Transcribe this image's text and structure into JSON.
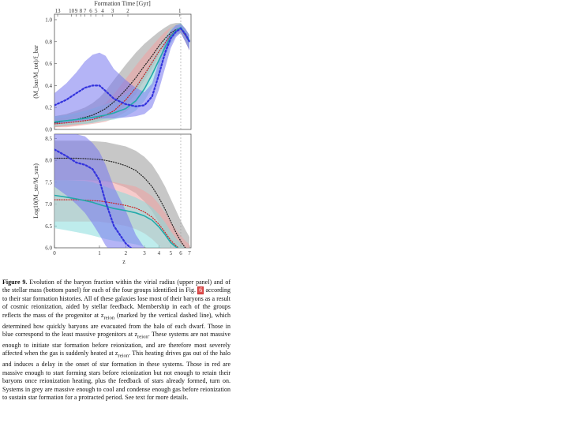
{
  "caption": {
    "label": "Figure 9.",
    "text_a": " Evolution of the baryon fraction within the virial radius (upper panel) and of the stellar mass (bottom panel) for each of the four groups identified in Fig. ",
    "fig_ref": "6",
    "text_b": " according to their star formation histories. All of these galaxies lose most of their baryons as a result of cosmic reionization, aided by stellar feedback. Membership in each of the groups reflects the mass of the progenitor at z",
    "sub_1": "reion",
    "text_c": " (marked by the vertical dashed line), which determined how quickly baryons are evacuated from the halo of each dwarf. Those in blue correspond to the least massive progenitors at z",
    "sub_2": "reion",
    "text_d": ". These systems are not massive enough to initiate star formation before reionization, and are therefore most severely affected when the gas is suddenly heated at z",
    "sub_3": "reion",
    "text_e": ". This heating drives gas out of the halo and induces a delay in the onset of star formation in these systems. Those in red are massive enough to start forming stars before reionization but not enough to retain their baryons once reionization heating, plus the feedback of stars already formed, turn on. Systems in grey are massive enough to cool and condense enough gas before reionization to sustain star formation for a protracted period. See text for more details."
  },
  "colors": {
    "blue": "#3333dd",
    "blue_band": "#7777ee",
    "red": "#cc2222",
    "red_band": "#f0a0a0",
    "grey": "#222222",
    "grey_band": "#999999",
    "cyan": "#22aaaa",
    "cyan_band": "#88dddd"
  },
  "chart_data": [
    {
      "type": "line",
      "panel": "upper",
      "ylabel": "(M_bar/M_tot)/f_bar",
      "xlabel": "",
      "top_axis_label": "Formation Time [Gyr]",
      "top_ticks": [
        "13",
        "10",
        "9",
        "8",
        "7",
        "6",
        "5",
        "4",
        "3",
        "2",
        "1"
      ],
      "top_tick_z": [
        0.05,
        0.3,
        0.4,
        0.5,
        0.6,
        0.75,
        0.9,
        1.1,
        1.45,
        2.1,
        5.9
      ],
      "x_axis": "1+z (log), labelled as z",
      "xlim": [
        0,
        7.2
      ],
      "ylim": [
        0,
        1.05
      ],
      "yticks": [
        0.0,
        0.2,
        0.4,
        0.6,
        0.8,
        1.0
      ],
      "ytick_labels": [
        "0.0",
        "0.2",
        "0.4",
        "0.6",
        "0.8",
        "1.0"
      ],
      "z_reion": 6,
      "x": [
        0,
        0.2,
        0.4,
        0.6,
        0.8,
        1.0,
        1.2,
        1.5,
        2.0,
        2.5,
        3.0,
        3.5,
        4.0,
        4.5,
        5.0,
        5.5,
        6.0,
        6.5,
        7.0
      ],
      "series": [
        {
          "color": "grey",
          "values": [
            0.06,
            0.08,
            0.09,
            0.11,
            0.13,
            0.16,
            0.19,
            0.25,
            0.36,
            0.47,
            0.58,
            0.67,
            0.76,
            0.83,
            0.88,
            0.91,
            0.92,
            0.86,
            0.8
          ],
          "band_lo": [
            0.02,
            0.03,
            0.04,
            0.05,
            0.06,
            0.08,
            0.1,
            0.14,
            0.22,
            0.32,
            0.45,
            0.56,
            0.67,
            0.76,
            0.83,
            0.87,
            0.88,
            0.8,
            0.72
          ],
          "band_hi": [
            0.12,
            0.14,
            0.17,
            0.2,
            0.24,
            0.29,
            0.35,
            0.45,
            0.59,
            0.7,
            0.78,
            0.84,
            0.89,
            0.93,
            0.96,
            0.97,
            0.97,
            0.92,
            0.86
          ]
        },
        {
          "color": "red",
          "values": [
            0.05,
            0.06,
            0.07,
            0.08,
            0.09,
            0.11,
            0.13,
            0.17,
            0.27,
            0.38,
            0.5,
            0.61,
            0.71,
            0.79,
            0.86,
            0.9,
            0.92,
            0.86,
            0.8
          ],
          "band_lo": [
            0.02,
            0.02,
            0.03,
            0.04,
            0.05,
            0.06,
            0.07,
            0.1,
            0.16,
            0.24,
            0.36,
            0.5,
            0.62,
            0.72,
            0.8,
            0.86,
            0.88,
            0.8,
            0.72
          ],
          "band_hi": [
            0.1,
            0.11,
            0.13,
            0.15,
            0.17,
            0.2,
            0.24,
            0.32,
            0.46,
            0.58,
            0.68,
            0.76,
            0.83,
            0.89,
            0.93,
            0.95,
            0.96,
            0.92,
            0.86
          ]
        },
        {
          "color": "cyan",
          "values": [
            0.07,
            0.08,
            0.09,
            0.1,
            0.11,
            0.12,
            0.13,
            0.15,
            0.19,
            0.26,
            0.37,
            0.5,
            0.63,
            0.75,
            0.85,
            0.9,
            0.93,
            0.87,
            0.81
          ],
          "band_lo": [
            0.03,
            0.04,
            0.05,
            0.05,
            0.06,
            0.07,
            0.08,
            0.09,
            0.12,
            0.17,
            0.26,
            0.38,
            0.52,
            0.66,
            0.78,
            0.85,
            0.88,
            0.81,
            0.73
          ],
          "band_hi": [
            0.12,
            0.13,
            0.15,
            0.17,
            0.19,
            0.21,
            0.23,
            0.26,
            0.32,
            0.4,
            0.51,
            0.63,
            0.74,
            0.84,
            0.92,
            0.95,
            0.97,
            0.92,
            0.86
          ]
        },
        {
          "color": "blue",
          "values": [
            0.22,
            0.27,
            0.33,
            0.38,
            0.4,
            0.4,
            0.35,
            0.28,
            0.23,
            0.21,
            0.22,
            0.3,
            0.5,
            0.7,
            0.83,
            0.89,
            0.92,
            0.87,
            0.8
          ],
          "band_lo": [
            0.05,
            0.06,
            0.07,
            0.08,
            0.09,
            0.1,
            0.1,
            0.1,
            0.11,
            0.12,
            0.14,
            0.2,
            0.36,
            0.56,
            0.74,
            0.84,
            0.88,
            0.8,
            0.72
          ],
          "band_hi": [
            0.33,
            0.42,
            0.52,
            0.62,
            0.68,
            0.7,
            0.67,
            0.55,
            0.45,
            0.38,
            0.34,
            0.42,
            0.62,
            0.8,
            0.9,
            0.95,
            0.96,
            0.92,
            0.86
          ]
        }
      ]
    },
    {
      "type": "line",
      "panel": "lower",
      "ylabel": "Log10(M_str/M_sun)",
      "xlabel": "z",
      "x_axis": "1+z (log), labelled as z",
      "xlim": [
        0,
        7.2
      ],
      "xticks": [
        0,
        1,
        2,
        3,
        4,
        5,
        6,
        7
      ],
      "xtick_labels": [
        "0",
        "1",
        "2",
        "3",
        "4",
        "5",
        "6",
        "7"
      ],
      "ylim": [
        6.0,
        8.6
      ],
      "yticks": [
        6.0,
        6.5,
        7.0,
        7.5,
        8.0,
        8.5
      ],
      "ytick_labels": [
        "6.0",
        "6.5",
        "7.0",
        "7.5",
        "8.0",
        "8.5"
      ],
      "z_reion": 6,
      "x": [
        0,
        0.2,
        0.4,
        0.6,
        0.8,
        1.0,
        1.2,
        1.5,
        2.0,
        2.5,
        3.0,
        3.5,
        4.0,
        4.5,
        5.0,
        5.5,
        6.0,
        6.5,
        7.0
      ],
      "series": [
        {
          "color": "grey",
          "values": [
            8.05,
            8.05,
            8.05,
            8.04,
            8.03,
            8.02,
            8.0,
            7.96,
            7.88,
            7.77,
            7.6,
            7.4,
            7.15,
            6.88,
            6.6,
            6.35,
            6.15,
            6.0,
            5.9
          ],
          "band_lo": [
            7.55,
            7.55,
            7.55,
            7.55,
            7.54,
            7.53,
            7.52,
            7.48,
            7.38,
            7.25,
            7.06,
            6.84,
            6.58,
            6.32,
            6.1,
            5.95,
            5.85,
            5.8,
            5.8
          ],
          "band_hi": [
            8.45,
            8.45,
            8.45,
            8.45,
            8.44,
            8.43,
            8.42,
            8.38,
            8.32,
            8.22,
            8.08,
            7.9,
            7.66,
            7.4,
            7.12,
            6.86,
            6.62,
            6.42,
            6.25
          ]
        },
        {
          "color": "red",
          "values": [
            7.1,
            7.1,
            7.1,
            7.09,
            7.08,
            7.07,
            7.05,
            7.02,
            6.97,
            6.91,
            6.82,
            6.7,
            6.54,
            6.35,
            6.17,
            6.05,
            5.95,
            5.88,
            5.85
          ],
          "band_lo": [
            6.6,
            6.6,
            6.6,
            6.6,
            6.6,
            6.6,
            6.58,
            6.55,
            6.5,
            6.43,
            6.33,
            6.2,
            6.05,
            5.92,
            5.85,
            5.82,
            5.8,
            5.8,
            5.8
          ],
          "band_hi": [
            7.55,
            7.55,
            7.55,
            7.55,
            7.55,
            7.54,
            7.53,
            7.5,
            7.45,
            7.4,
            7.3,
            7.18,
            7.0,
            6.8,
            6.6,
            6.42,
            6.28,
            6.16,
            6.08
          ]
        },
        {
          "color": "cyan",
          "values": [
            7.2,
            7.16,
            7.12,
            7.08,
            7.04,
            6.99,
            6.95,
            6.9,
            6.85,
            6.8,
            6.73,
            6.63,
            6.48,
            6.3,
            6.12,
            6.02,
            5.95,
            5.88,
            5.85
          ],
          "band_lo": [
            6.45,
            6.4,
            6.36,
            6.32,
            6.28,
            6.24,
            6.2,
            6.16,
            6.12,
            6.08,
            6.02,
            5.94,
            5.86,
            5.82,
            5.8,
            5.8,
            5.8,
            5.8,
            5.8
          ],
          "band_hi": [
            7.55,
            7.55,
            7.54,
            7.53,
            7.5,
            7.45,
            7.4,
            7.33,
            7.24,
            7.15,
            7.05,
            6.92,
            6.77,
            6.58,
            6.38,
            6.22,
            6.1,
            6.0,
            5.92
          ]
        },
        {
          "color": "blue",
          "values": [
            8.25,
            8.1,
            7.95,
            7.9,
            7.8,
            7.55,
            7.05,
            6.5,
            6.1,
            5.9,
            5.85,
            5.82,
            5.8,
            5.8,
            5.8,
            5.8,
            5.8,
            5.8,
            5.8
          ],
          "band_lo": [
            7.4,
            7.2,
            7.0,
            6.8,
            6.55,
            6.3,
            6.05,
            5.85,
            5.8,
            5.8,
            5.8,
            5.8,
            5.8,
            5.8,
            5.8,
            5.8,
            5.8,
            5.8,
            5.8
          ],
          "band_hi": [
            8.6,
            8.6,
            8.6,
            8.55,
            8.4,
            8.2,
            7.9,
            7.4,
            6.85,
            6.3,
            6.0,
            5.85,
            5.8,
            5.8,
            5.8,
            5.8,
            5.8,
            5.8,
            5.8
          ]
        }
      ]
    }
  ]
}
